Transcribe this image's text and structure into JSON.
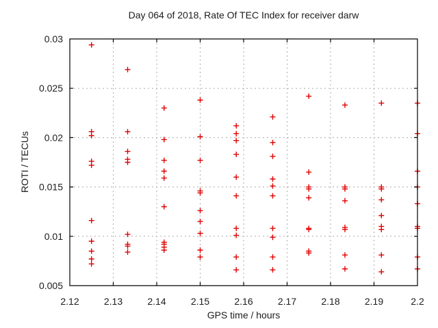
{
  "chart_data": {
    "type": "scatter",
    "title": "Day 064 of 2018, Rate Of TEC Index for receiver darw",
    "xlabel": "GPS time / hours",
    "ylabel": "ROTI / TECUs",
    "xlim": [
      2.12,
      2.2
    ],
    "ylim": [
      0.005,
      0.03
    ],
    "xticks": [
      2.12,
      2.13,
      2.14,
      2.15,
      2.16,
      2.17,
      2.18,
      2.19,
      2.2
    ],
    "xtick_labels": [
      "2.12",
      "2.13",
      "2.14",
      "2.15",
      "2.16",
      "2.17",
      "2.18",
      "2.19",
      "2.2"
    ],
    "yticks": [
      0.005,
      0.01,
      0.015,
      0.02,
      0.025,
      0.03
    ],
    "ytick_labels": [
      "0.005",
      "0.01",
      "0.015",
      "0.02",
      "0.025",
      "0.03"
    ],
    "grid": true,
    "legend_position": "none",
    "marker": {
      "shape": "plus",
      "color": "#e00000",
      "size": 8
    },
    "grid_color": "#ababab",
    "axis_color": "#000000",
    "background_color": "#ffffff",
    "series": [
      {
        "name": "ROTI",
        "points": [
          [
            2.125,
            0.0294
          ],
          [
            2.125,
            0.0206
          ],
          [
            2.125,
            0.0202
          ],
          [
            2.125,
            0.0176
          ],
          [
            2.125,
            0.0172
          ],
          [
            2.125,
            0.0116
          ],
          [
            2.125,
            0.0095
          ],
          [
            2.125,
            0.0085
          ],
          [
            2.125,
            0.0077
          ],
          [
            2.125,
            0.0072
          ],
          [
            2.1333,
            0.0269
          ],
          [
            2.1333,
            0.0206
          ],
          [
            2.1333,
            0.0186
          ],
          [
            2.1333,
            0.0178
          ],
          [
            2.1333,
            0.0175
          ],
          [
            2.1333,
            0.0102
          ],
          [
            2.1333,
            0.0092
          ],
          [
            2.1333,
            0.009
          ],
          [
            2.1333,
            0.0084
          ],
          [
            2.1417,
            0.023
          ],
          [
            2.1417,
            0.0198
          ],
          [
            2.1417,
            0.0177
          ],
          [
            2.1417,
            0.0166
          ],
          [
            2.1417,
            0.0159
          ],
          [
            2.1417,
            0.013
          ],
          [
            2.1417,
            0.0094
          ],
          [
            2.1417,
            0.0092
          ],
          [
            2.1417,
            0.0089
          ],
          [
            2.1417,
            0.0086
          ],
          [
            2.15,
            0.0238
          ],
          [
            2.15,
            0.0201
          ],
          [
            2.15,
            0.0177
          ],
          [
            2.15,
            0.0146
          ],
          [
            2.15,
            0.0144
          ],
          [
            2.15,
            0.0126
          ],
          [
            2.15,
            0.0115
          ],
          [
            2.15,
            0.0103
          ],
          [
            2.15,
            0.0086
          ],
          [
            2.15,
            0.0079
          ],
          [
            2.1583,
            0.0212
          ],
          [
            2.1583,
            0.0204
          ],
          [
            2.1583,
            0.0197
          ],
          [
            2.1583,
            0.0183
          ],
          [
            2.1583,
            0.016
          ],
          [
            2.1583,
            0.0141
          ],
          [
            2.1583,
            0.0108
          ],
          [
            2.1583,
            0.0101
          ],
          [
            2.1583,
            0.0079
          ],
          [
            2.1583,
            0.0066
          ],
          [
            2.1667,
            0.0221
          ],
          [
            2.1667,
            0.0195
          ],
          [
            2.1667,
            0.0181
          ],
          [
            2.1667,
            0.0158
          ],
          [
            2.1667,
            0.0151
          ],
          [
            2.1667,
            0.0141
          ],
          [
            2.1667,
            0.0108
          ],
          [
            2.1667,
            0.0099
          ],
          [
            2.1667,
            0.0079
          ],
          [
            2.1667,
            0.0066
          ],
          [
            2.175,
            0.0242
          ],
          [
            2.175,
            0.0165
          ],
          [
            2.175,
            0.015
          ],
          [
            2.175,
            0.0148
          ],
          [
            2.175,
            0.0139
          ],
          [
            2.175,
            0.0108
          ],
          [
            2.175,
            0.0107
          ],
          [
            2.175,
            0.0085
          ],
          [
            2.175,
            0.0083
          ],
          [
            2.1833,
            0.0233
          ],
          [
            2.1833,
            0.015
          ],
          [
            2.1833,
            0.0148
          ],
          [
            2.1833,
            0.0136
          ],
          [
            2.1833,
            0.0109
          ],
          [
            2.1833,
            0.0107
          ],
          [
            2.1833,
            0.0081
          ],
          [
            2.1833,
            0.0067
          ],
          [
            2.1917,
            0.0235
          ],
          [
            2.1917,
            0.015
          ],
          [
            2.1917,
            0.0148
          ],
          [
            2.1917,
            0.0137
          ],
          [
            2.1917,
            0.0121
          ],
          [
            2.1917,
            0.011
          ],
          [
            2.1917,
            0.0107
          ],
          [
            2.1917,
            0.0081
          ],
          [
            2.1917,
            0.0064
          ],
          [
            2.2,
            0.0235
          ],
          [
            2.2,
            0.0204
          ],
          [
            2.2,
            0.0166
          ],
          [
            2.2,
            0.015
          ],
          [
            2.2,
            0.0133
          ],
          [
            2.2,
            0.011
          ],
          [
            2.2,
            0.0108
          ],
          [
            2.2,
            0.0079
          ],
          [
            2.2,
            0.0067
          ]
        ]
      }
    ]
  }
}
